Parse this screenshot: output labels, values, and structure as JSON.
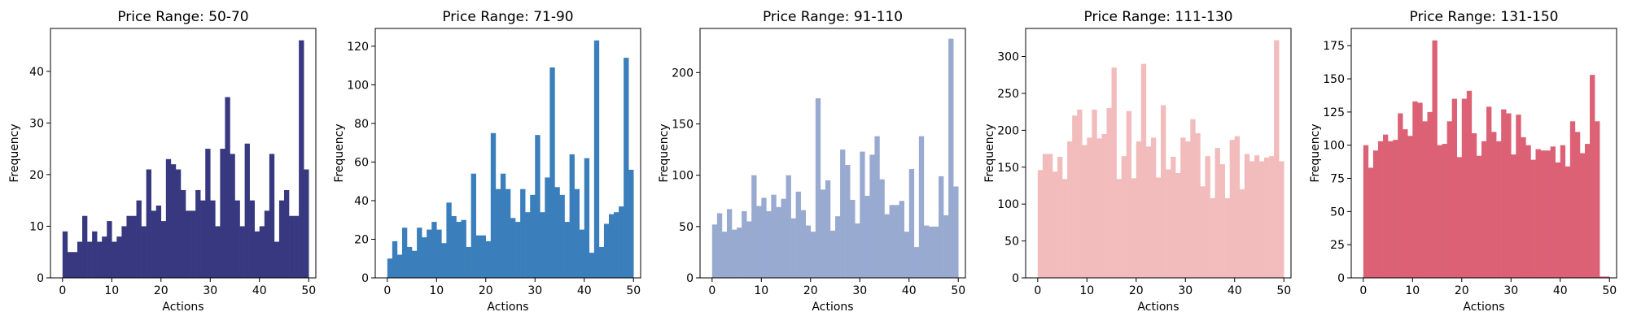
{
  "chart_data": [
    {
      "type": "bar",
      "title": "Price Range: 50-70",
      "xlabel": "Actions",
      "ylabel": "Frequency",
      "color": "#373880",
      "xlim": [
        -2.45,
        51.45
      ],
      "ylim": [
        0,
        48.3
      ],
      "xticks": [
        0,
        10,
        20,
        30,
        40,
        50
      ],
      "yticks": [
        0,
        10,
        20,
        30,
        40
      ],
      "bin_width": 0.98,
      "x": [
        0,
        1,
        2,
        3,
        4,
        5,
        6,
        7,
        8,
        9,
        10,
        11,
        12,
        13,
        14,
        15,
        16,
        17,
        18,
        19,
        20,
        21,
        22,
        23,
        24,
        25,
        26,
        27,
        28,
        29,
        30,
        31,
        32,
        33,
        34,
        35,
        36,
        37,
        38,
        39,
        40,
        41,
        42,
        43,
        44,
        45,
        46,
        47,
        48,
        49
      ],
      "values": [
        9,
        5,
        5,
        7,
        12,
        7,
        9,
        7,
        8,
        11,
        7,
        8,
        10,
        12,
        12,
        15,
        10,
        21,
        13,
        14,
        11,
        23,
        22,
        21,
        17,
        13,
        13,
        17,
        15,
        25,
        15,
        10,
        25,
        35,
        24,
        15,
        10,
        26,
        15,
        9,
        10,
        13,
        24,
        7,
        15,
        17,
        12,
        12,
        46,
        21
      ]
    },
    {
      "type": "bar",
      "title": "Price Range: 71-90",
      "xlabel": "Actions",
      "ylabel": "Frequency",
      "color": "#3a7ebb",
      "xlim": [
        -2.45,
        51.45
      ],
      "ylim": [
        0,
        129.2
      ],
      "xticks": [
        0,
        10,
        20,
        30,
        40,
        50
      ],
      "yticks": [
        0,
        20,
        40,
        60,
        80,
        100,
        120
      ],
      "bin_width": 0.98,
      "x": [
        0,
        1,
        2,
        3,
        4,
        5,
        6,
        7,
        8,
        9,
        10,
        11,
        12,
        13,
        14,
        15,
        16,
        17,
        18,
        19,
        20,
        21,
        22,
        23,
        24,
        25,
        26,
        27,
        28,
        29,
        30,
        31,
        32,
        33,
        34,
        35,
        36,
        37,
        38,
        39,
        40,
        41,
        42,
        43,
        44,
        45,
        46,
        47,
        48,
        49
      ],
      "values": [
        10,
        19,
        12,
        26,
        16,
        14,
        26,
        21,
        25,
        29,
        25,
        18,
        39,
        32,
        29,
        30,
        16,
        54,
        22,
        22,
        19,
        75,
        46,
        54,
        46,
        31,
        29,
        46,
        34,
        43,
        74,
        34,
        52,
        109,
        47,
        43,
        29,
        64,
        46,
        25,
        62,
        13,
        123,
        16,
        28,
        33,
        34,
        37,
        114,
        56
      ]
    },
    {
      "type": "bar",
      "title": "Price Range: 91-110",
      "xlabel": "Actions",
      "ylabel": "Frequency",
      "color": "#99aad1",
      "xlim": [
        -2.45,
        51.45
      ],
      "ylim": [
        0,
        243
      ],
      "xticks": [
        0,
        10,
        20,
        30,
        40,
        50
      ],
      "yticks": [
        0,
        50,
        100,
        150,
        200
      ],
      "bin_width": 0.98,
      "x": [
        0,
        1,
        2,
        3,
        4,
        5,
        6,
        7,
        8,
        9,
        10,
        11,
        12,
        13,
        14,
        15,
        16,
        17,
        18,
        19,
        20,
        21,
        22,
        23,
        24,
        25,
        26,
        27,
        28,
        29,
        30,
        31,
        32,
        33,
        34,
        35,
        36,
        37,
        38,
        39,
        40,
        41,
        42,
        43,
        44,
        45,
        46,
        47,
        48,
        49
      ],
      "values": [
        52,
        63,
        45,
        67,
        47,
        49,
        65,
        55,
        100,
        70,
        78,
        65,
        81,
        69,
        77,
        100,
        58,
        84,
        66,
        51,
        45,
        175,
        86,
        95,
        46,
        60,
        125,
        110,
        76,
        53,
        123,
        80,
        120,
        138,
        96,
        62,
        71,
        71,
        75,
        45,
        106,
        30,
        138,
        51,
        50,
        50,
        99,
        61,
        233,
        89
      ]
    },
    {
      "type": "bar",
      "title": "Price Range: 111-130",
      "xlabel": "Actions",
      "ylabel": "Frequency",
      "color": "#f2bcbc",
      "xlim": [
        -2.45,
        51.45
      ],
      "ylim": [
        0,
        338
      ],
      "xticks": [
        0,
        10,
        20,
        30,
        40,
        50
      ],
      "yticks": [
        0,
        50,
        100,
        150,
        200,
        250,
        300
      ],
      "bin_width": 0.98,
      "x": [
        0,
        1,
        2,
        3,
        4,
        5,
        6,
        7,
        8,
        9,
        10,
        11,
        12,
        13,
        14,
        15,
        16,
        17,
        18,
        19,
        20,
        21,
        22,
        23,
        24,
        25,
        26,
        27,
        28,
        29,
        30,
        31,
        32,
        33,
        34,
        35,
        36,
        37,
        38,
        39,
        40,
        41,
        42,
        43,
        44,
        45,
        46,
        47,
        48,
        49
      ],
      "values": [
        146,
        168,
        168,
        144,
        164,
        134,
        185,
        220,
        228,
        180,
        190,
        228,
        189,
        195,
        230,
        285,
        134,
        165,
        226,
        135,
        185,
        290,
        178,
        190,
        136,
        234,
        147,
        164,
        142,
        190,
        185,
        215,
        196,
        124,
        165,
        108,
        176,
        154,
        108,
        187,
        192,
        120,
        168,
        158,
        166,
        158,
        163,
        165,
        322,
        158
      ]
    },
    {
      "type": "bar",
      "title": "Price Range: 131-150",
      "xlabel": "Actions",
      "ylabel": "Frequency",
      "color": "#dc6175",
      "xlim": [
        -2.45,
        51.45
      ],
      "ylim": [
        0,
        188
      ],
      "xticks": [
        0,
        10,
        20,
        30,
        40,
        50
      ],
      "yticks": [
        0,
        25,
        50,
        75,
        100,
        125,
        150,
        175
      ],
      "bin_width": 0.98,
      "x": [
        0,
        1,
        2,
        3,
        4,
        5,
        6,
        7,
        8,
        9,
        10,
        11,
        12,
        13,
        14,
        15,
        16,
        17,
        18,
        19,
        20,
        21,
        22,
        23,
        24,
        25,
        26,
        27,
        28,
        29,
        30,
        31,
        32,
        33,
        34,
        35,
        36,
        37,
        38,
        39,
        40,
        41,
        42,
        43,
        44,
        45,
        46,
        47,
        48,
        49
      ],
      "values": [
        100,
        83,
        96,
        103,
        108,
        103,
        104,
        124,
        112,
        107,
        133,
        132,
        118,
        125,
        179,
        100,
        101,
        118,
        135,
        91,
        135,
        141,
        109,
        92,
        103,
        129,
        110,
        103,
        127,
        124,
        93,
        123,
        106,
        100,
        89,
        97,
        96,
        96,
        99,
        87,
        100,
        84,
        118,
        110,
        94,
        101,
        153,
        118,
        1,
        1
      ]
    }
  ]
}
